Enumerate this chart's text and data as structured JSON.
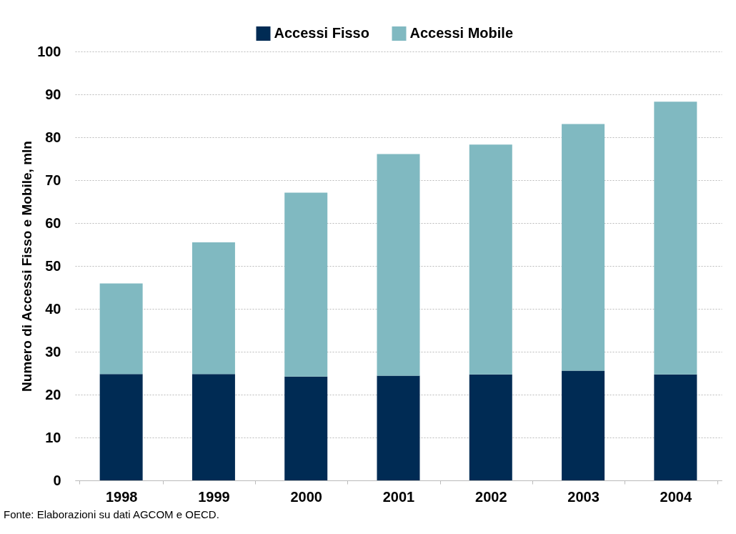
{
  "chart_data": {
    "type": "bar",
    "stacked": true,
    "ylabel": "Numero di Accessi Fisso e Mobile, mln",
    "categories": [
      "1998",
      "1999",
      "2000",
      "2001",
      "2002",
      "2003",
      "2004"
    ],
    "series": [
      {
        "name": "Accessi Fisso",
        "color": "#002b54",
        "values": [
          24.8,
          24.8,
          24.2,
          24.4,
          24.7,
          25.6,
          24.7
        ]
      },
      {
        "name": "Accessi Mobile",
        "color": "#80b9c1",
        "values": [
          21.1,
          30.7,
          42.9,
          51.7,
          53.6,
          57.5,
          63.6
        ]
      }
    ],
    "ylim": [
      0,
      100
    ],
    "yticks": [
      0,
      10,
      20,
      30,
      40,
      50,
      60,
      70,
      80,
      90,
      100
    ],
    "grid": "y",
    "legend": "top",
    "annotations": [
      "Fonte: Elaborazioni su dati AGCOM e OECD."
    ]
  }
}
